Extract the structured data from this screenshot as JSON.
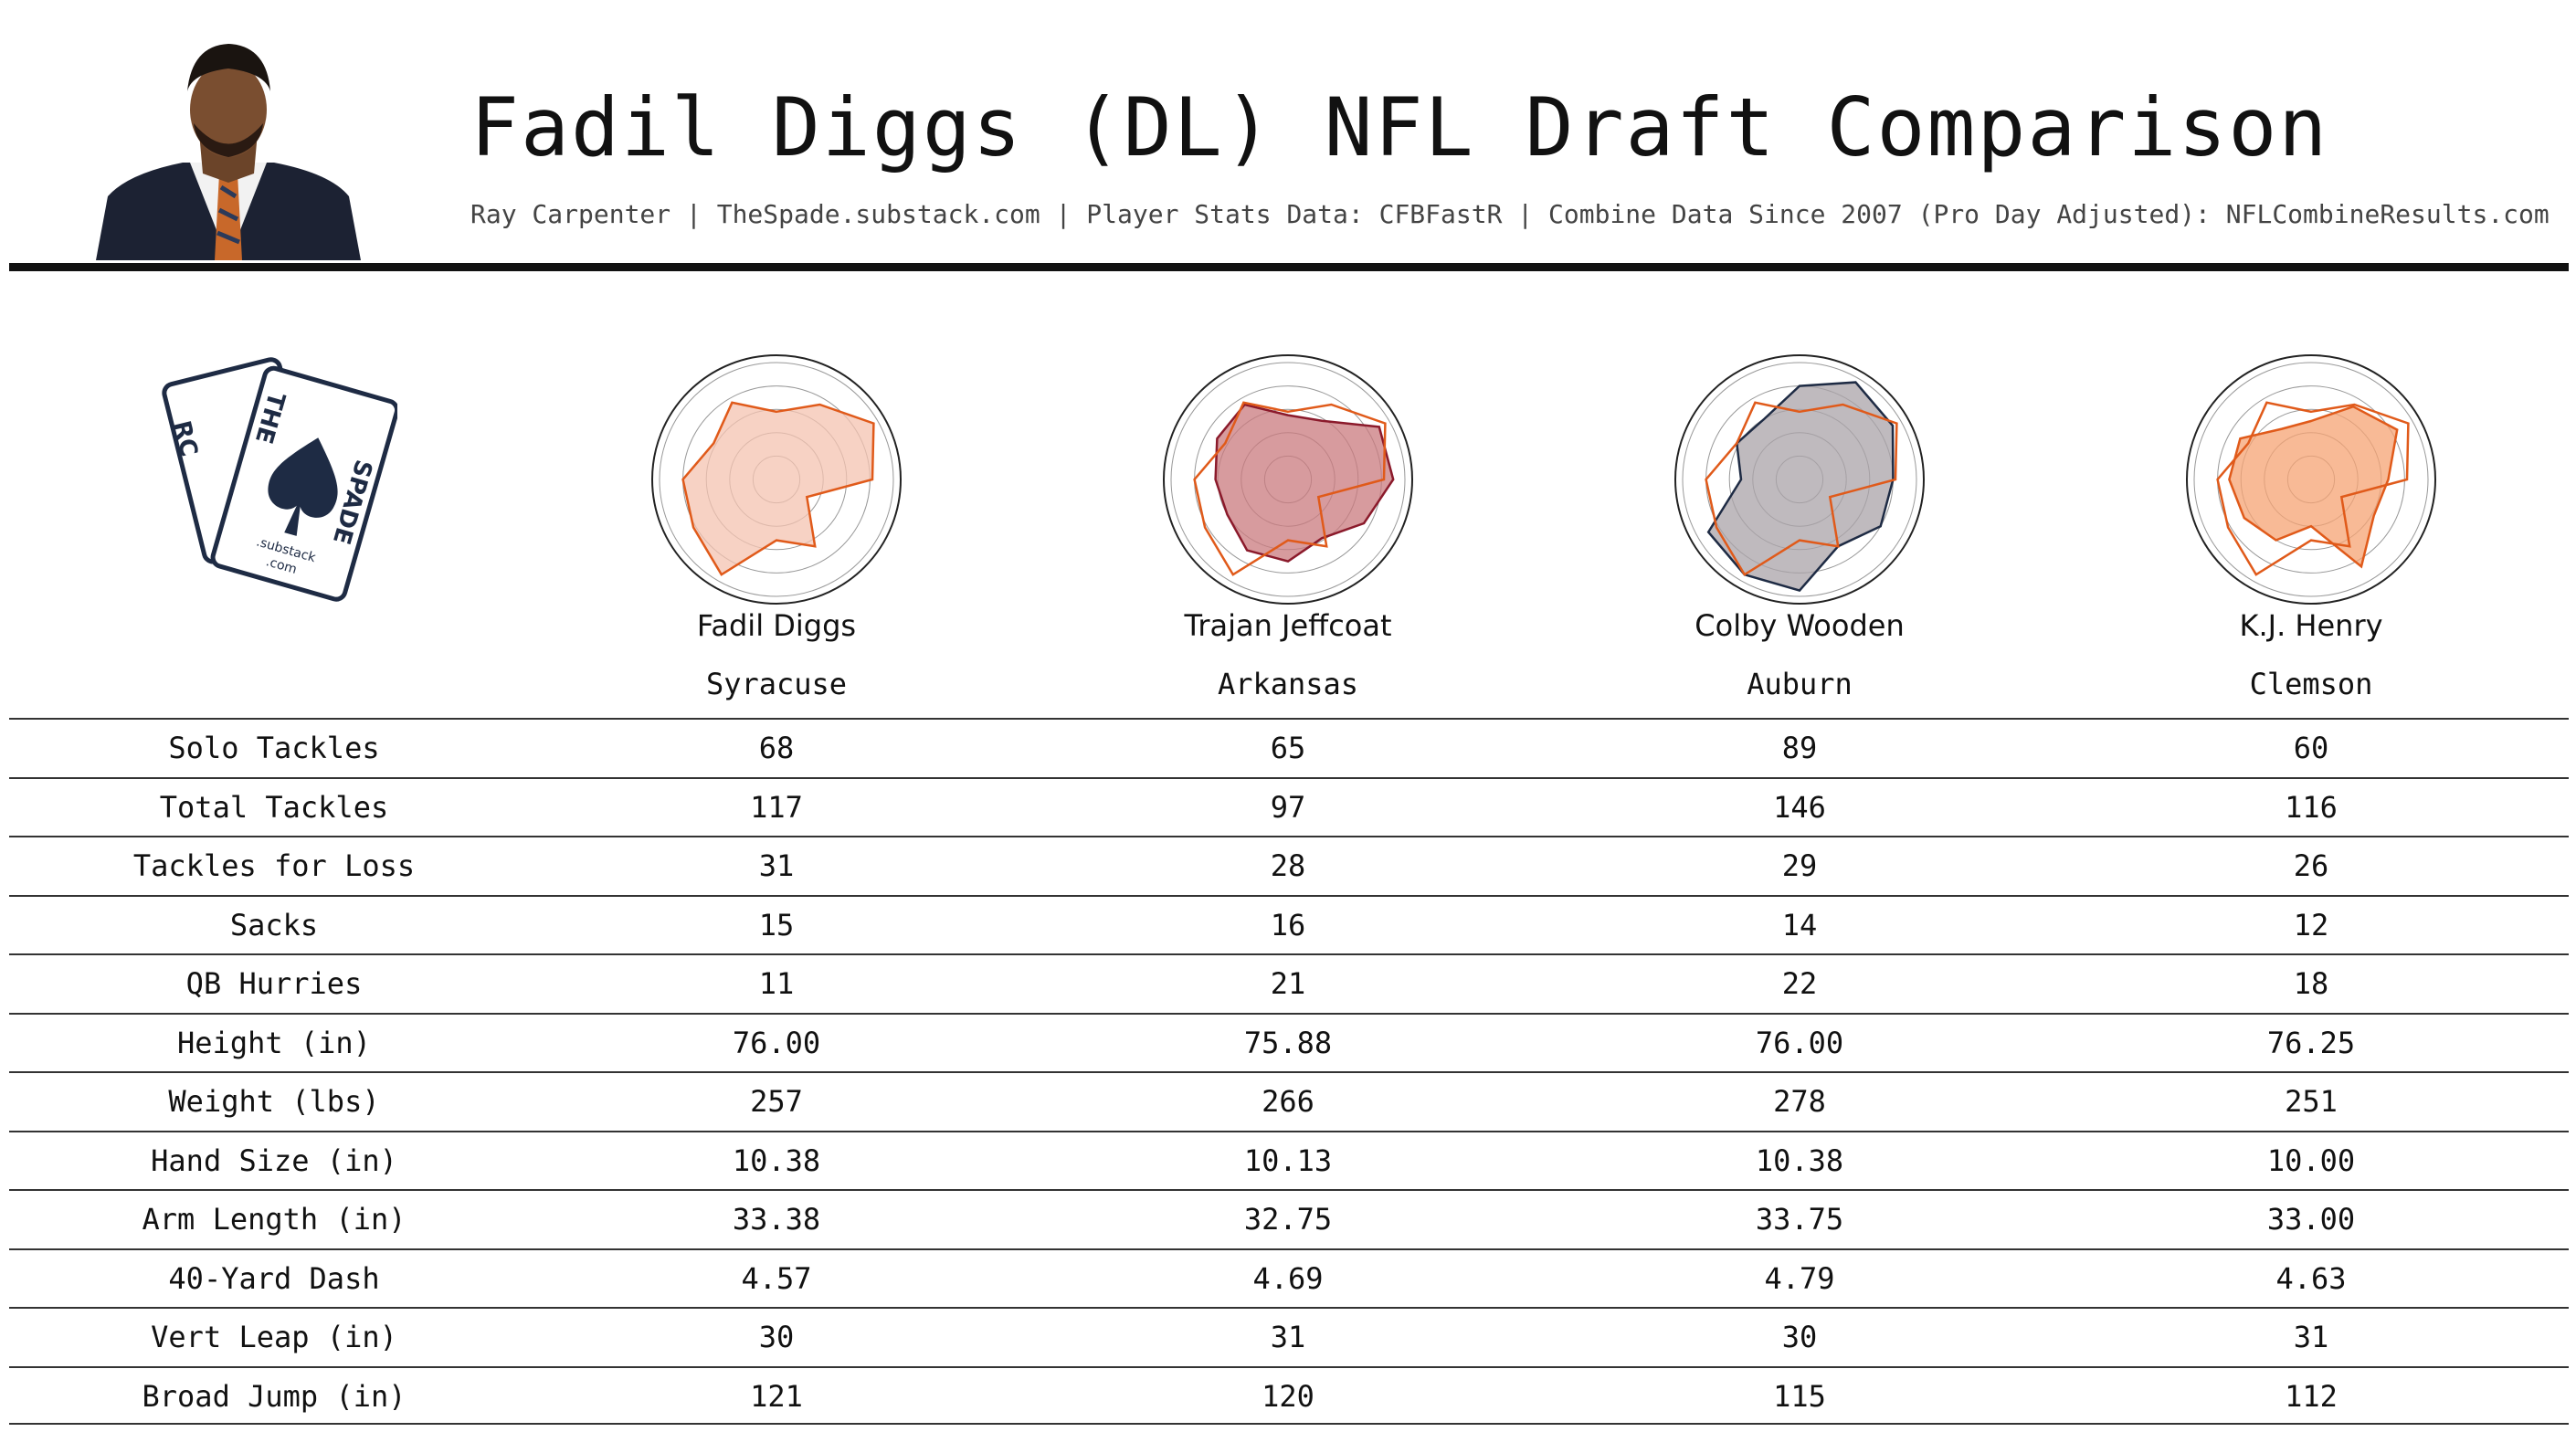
{
  "header": {
    "title": "Fadil Diggs (DL) NFL Draft Comparison",
    "subtitle": "Ray Carpenter | TheSpade.substack.com | Player Stats Data: CFBFastR | Combine Data Since 2007 (Pro Day Adjusted): NFLCombineResults.com"
  },
  "logo": {
    "card_back_letters": "RC",
    "card_front_top": "THE",
    "card_front_side": "SPADE",
    "card_footer_1": ".substack",
    "card_footer_2": ".com"
  },
  "colors": {
    "accent_orange": "#E05A1A",
    "navy": "#1E2B44",
    "maroon": "#8B1A2B",
    "grid": "#999999"
  },
  "players": [
    {
      "name": "Fadil Diggs",
      "school": "Syracuse",
      "fill": "#F4C3B0",
      "stroke": "#E05A1A"
    },
    {
      "name": "Trajan Jeffcoat",
      "school": "Arkansas",
      "fill": "#C97A7E",
      "stroke": "#8B1A2B"
    },
    {
      "name": "Colby Wooden",
      "school": "Auburn",
      "fill": "#A9A3A8",
      "stroke": "#1E2B44"
    },
    {
      "name": "K.J. Henry",
      "school": "Clemson",
      "fill": "#F5A373",
      "stroke": "#E05A1A"
    }
  ],
  "chart_data": {
    "type": "table",
    "columns": [
      "Fadil Diggs",
      "Trajan Jeffcoat",
      "Colby Wooden",
      "K.J. Henry"
    ],
    "rows": [
      {
        "label": "Solo Tackles",
        "values": [
          "68",
          "65",
          "89",
          "60"
        ]
      },
      {
        "label": "Total Tackles",
        "values": [
          "117",
          "97",
          "146",
          "116"
        ]
      },
      {
        "label": "Tackles for Loss",
        "values": [
          "31",
          "28",
          "29",
          "26"
        ]
      },
      {
        "label": "Sacks",
        "values": [
          "15",
          "16",
          "14",
          "12"
        ]
      },
      {
        "label": "QB Hurries",
        "values": [
          "11",
          "21",
          "22",
          "18"
        ]
      },
      {
        "label": "Height (in)",
        "values": [
          "76.00",
          "75.88",
          "76.00",
          "76.25"
        ]
      },
      {
        "label": "Weight (lbs)",
        "values": [
          "257",
          "266",
          "278",
          "251"
        ]
      },
      {
        "label": "Hand Size (in)",
        "values": [
          "10.38",
          "10.13",
          "10.38",
          "10.00"
        ]
      },
      {
        "label": "Arm Length (in)",
        "values": [
          "33.38",
          "32.75",
          "33.75",
          "33.00"
        ]
      },
      {
        "label": "40-Yard Dash",
        "values": [
          "4.57",
          "4.69",
          "4.79",
          "4.63"
        ]
      },
      {
        "label": "Vert Leap (in)",
        "values": [
          "30",
          "31",
          "30",
          "31"
        ]
      },
      {
        "label": "Broad Jump (in)",
        "values": [
          "121",
          "120",
          "115",
          "112"
        ]
      }
    ],
    "radar": {
      "type": "radar",
      "axes": [
        "Solo Tackles",
        "Total Tackles",
        "Tackles for Loss",
        "Sacks",
        "QB Hurries",
        "Height (in)",
        "Weight (lbs)",
        "Hand Size (in)",
        "Arm Length (in)",
        "40-Yard Dash",
        "Vert Leap (in)",
        "Broad Jump (in)"
      ],
      "range": [
        0,
        1
      ],
      "reference": [
        0.58,
        0.74,
        0.96,
        0.82,
        0.3,
        0.66,
        0.52,
        0.94,
        0.82,
        0.8,
        0.62,
        0.76
      ],
      "series": [
        {
          "values": [
            0.58,
            0.74,
            0.96,
            0.82,
            0.3,
            0.66,
            0.52,
            0.94,
            0.82,
            0.8,
            0.62,
            0.76
          ]
        },
        {
          "values": [
            0.55,
            0.58,
            0.9,
            0.9,
            0.75,
            0.58,
            0.7,
            0.7,
            0.6,
            0.62,
            0.7,
            0.74
          ]
        },
        {
          "values": [
            0.8,
            0.96,
            0.92,
            0.8,
            0.8,
            0.66,
            0.95,
            0.94,
            0.9,
            0.5,
            0.62,
            0.6
          ]
        },
        {
          "values": [
            0.5,
            0.72,
            0.85,
            0.66,
            0.62,
            0.86,
            0.4,
            0.6,
            0.66,
            0.7,
            0.7,
            0.5
          ]
        }
      ]
    }
  }
}
